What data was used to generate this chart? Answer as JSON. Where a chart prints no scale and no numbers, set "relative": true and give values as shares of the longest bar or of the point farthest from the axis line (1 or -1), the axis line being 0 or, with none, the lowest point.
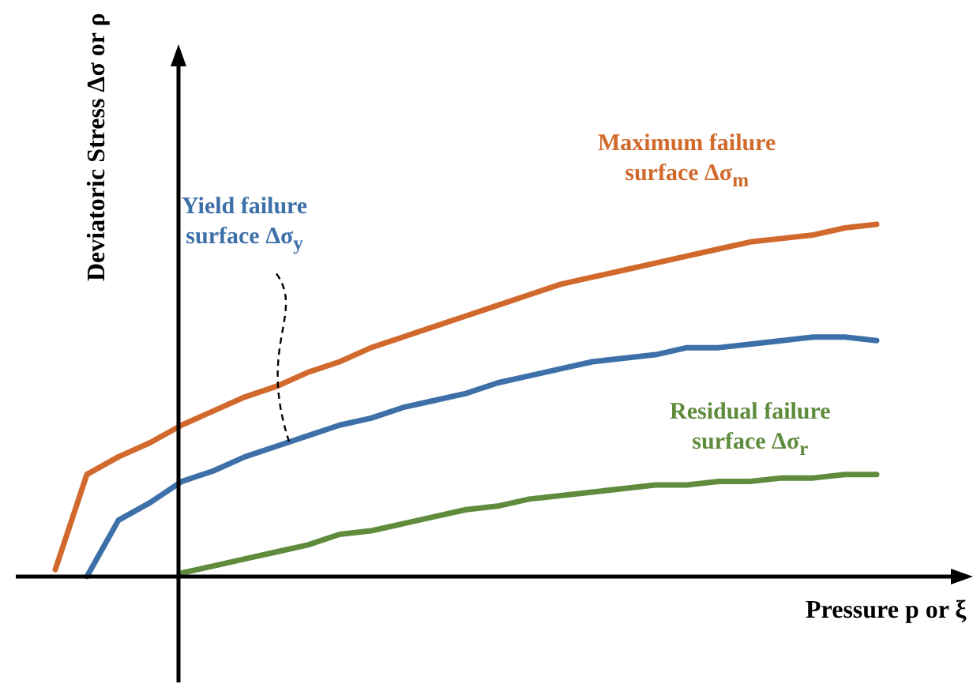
{
  "chart_data": {
    "type": "line",
    "relative": true,
    "ylabel": "Deviatoric Stress Δσ or ρ",
    "xlabel": "Pressure p or ξ",
    "marker": "none",
    "line_style": "solid",
    "grid": false,
    "legend": false,
    "categories": [
      null,
      null,
      null,
      null,
      null,
      null,
      null,
      null,
      null,
      null,
      null,
      null,
      null,
      null,
      null,
      null,
      null,
      null,
      null,
      null,
      null,
      null,
      null,
      null,
      null,
      null,
      null
    ],
    "series": [
      {
        "name": "Maximum failure surface Δσ$_{m}$",
        "color": "#d2692c",
        "values": [
          0.02,
          0.29,
          0.34,
          0.38,
          0.43,
          0.47,
          0.51,
          0.54,
          0.58,
          0.61,
          0.65,
          0.68,
          0.71,
          0.74,
          0.77,
          0.8,
          0.83,
          0.85,
          0.87,
          0.89,
          0.91,
          0.93,
          0.95,
          0.96,
          0.97,
          0.99,
          1
        ]
      },
      {
        "name": "Yield failure surface Δσ$_{y}$",
        "color": "#3d6fa8",
        "values": [
          null,
          0,
          0.16,
          0.21,
          0.27,
          0.3,
          0.34,
          0.37,
          0.4,
          0.43,
          0.45,
          0.48,
          0.5,
          0.52,
          0.55,
          0.57,
          0.59,
          0.61,
          0.62,
          0.63,
          0.65,
          0.65,
          0.66,
          0.67,
          0.68,
          0.68,
          0.67
        ]
      },
      {
        "name": "Residual failure surface Δσ$_{r}$",
        "color": "#5f8b3d",
        "values": [
          null,
          null,
          null,
          null,
          0.01,
          0.03,
          0.05,
          0.07,
          0.09,
          0.12,
          0.13,
          0.15,
          0.17,
          0.19,
          0.2,
          0.22,
          0.23,
          0.24,
          0.25,
          0.26,
          0.26,
          0.27,
          0.27,
          0.28,
          0.28,
          0.29,
          0.29
        ]
      }
    ]
  }
}
